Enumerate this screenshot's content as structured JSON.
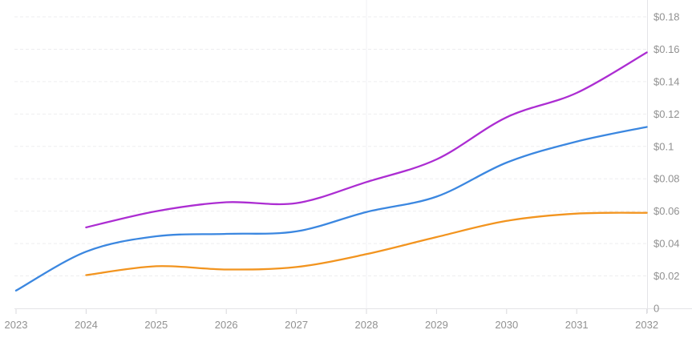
{
  "chart": {
    "background": "#ffffff",
    "grid_color": "#ededef",
    "axis_line_color": "#e4e4e7",
    "tick_color": "#d9d9dc",
    "label_color": "#919191",
    "crosshair_color": "#f0f0f4"
  },
  "chart_data": {
    "type": "line",
    "title": "",
    "xlabel": "",
    "ylabel": "",
    "x": [
      "2023",
      "2024",
      "2025",
      "2026",
      "2027",
      "2028",
      "2029",
      "2030",
      "2031",
      "2032"
    ],
    "series": [
      {
        "name": "blue-line",
        "color": "#3b87e0",
        "values": [
          0.011,
          0.035,
          0.0445,
          0.046,
          0.0475,
          0.0595,
          0.069,
          0.09,
          0.103,
          0.112
        ]
      },
      {
        "name": "orange-line",
        "color": "#f2941f",
        "values": [
          null,
          0.0205,
          0.026,
          0.024,
          0.0255,
          0.0335,
          0.044,
          0.054,
          0.0585,
          0.059
        ]
      },
      {
        "name": "purple-line",
        "color": "#ac2dd2",
        "values": [
          null,
          0.05,
          0.06,
          0.0655,
          0.065,
          0.078,
          0.092,
          0.118,
          0.133,
          0.158
        ]
      }
    ],
    "ylim": [
      0,
      0.18
    ],
    "y_ticks": [
      0,
      0.02,
      0.04,
      0.06,
      0.08,
      0.1,
      0.12,
      0.14,
      0.16,
      0.18
    ],
    "y_tick_labels": [
      "0",
      "$0.02",
      "$0.04",
      "$0.06",
      "$0.08",
      "$0.1",
      "$0.12",
      "$0.14",
      "$0.16",
      "$0.18"
    ],
    "grid": "horizontal-dashed",
    "legend": "none",
    "y_axis_side": "right",
    "crosshair_year": "2028"
  }
}
